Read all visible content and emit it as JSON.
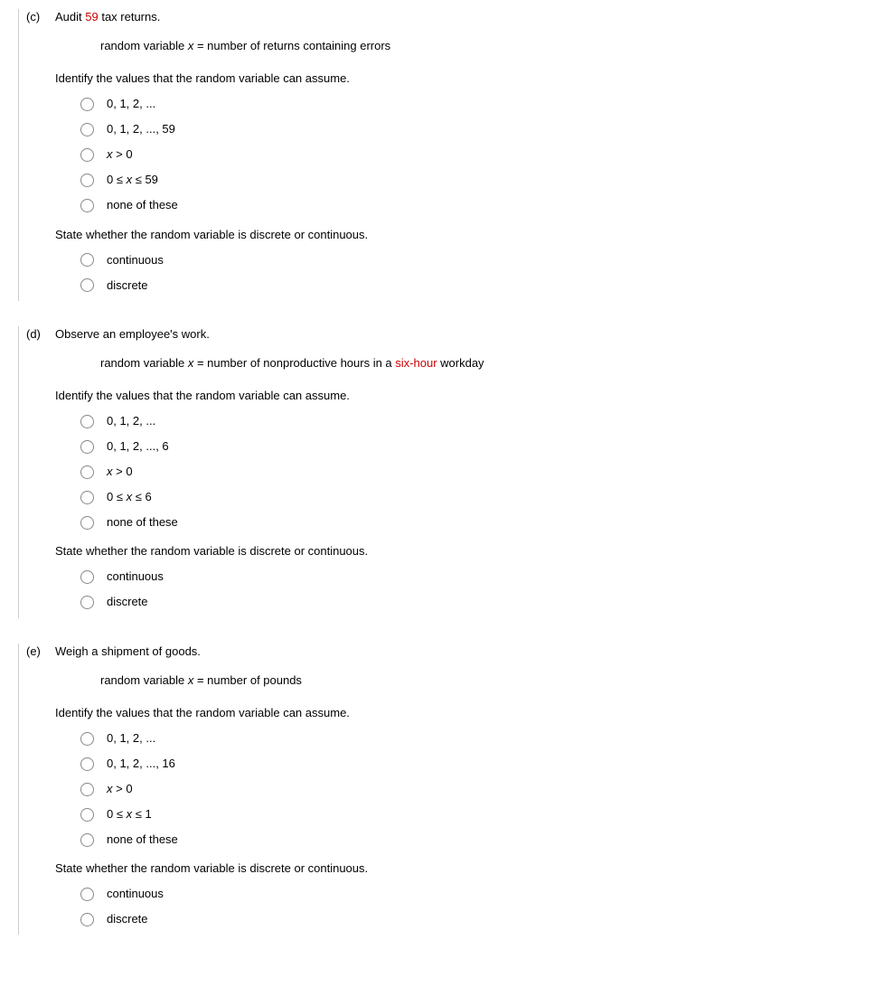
{
  "questions": [
    {
      "label": "(c)",
      "scenario_pre": "Audit ",
      "scenario_hl": "59",
      "scenario_post": " tax returns.",
      "rv_pre": "random variable ",
      "rv_var": "x",
      "rv_post": " = number of returns containing errors",
      "identify_prompt": "Identify the values that the random variable can assume.",
      "value_options": [
        "0, 1, 2, ...",
        "0, 1, 2, ..., 59",
        "<i>x</i> > 0",
        "0 ≤ <i>x</i> ≤ 59",
        "none of these"
      ],
      "state_prompt": "State whether the random variable is discrete or continuous.",
      "type_options": [
        "continuous",
        "discrete"
      ]
    },
    {
      "label": "(d)",
      "scenario_pre": "Observe an employee's work.",
      "scenario_hl": "",
      "scenario_post": "",
      "rv_pre": "random variable ",
      "rv_var": "x",
      "rv_post_pre": " = number of nonproductive hours in a ",
      "rv_post_hl": "six-hour",
      "rv_post_post": " workday",
      "identify_prompt": "Identify the values that the random variable can assume.",
      "value_options": [
        "0, 1, 2, ...",
        "0, 1, 2, ..., 6",
        "<i>x</i> > 0",
        "0 ≤ <i>x</i> ≤ 6",
        "none of these"
      ],
      "state_prompt": "State whether the random variable is discrete or continuous.",
      "type_options": [
        "continuous",
        "discrete"
      ]
    },
    {
      "label": "(e)",
      "scenario_pre": "Weigh a shipment of goods.",
      "scenario_hl": "",
      "scenario_post": "",
      "rv_pre": "random variable ",
      "rv_var": "x",
      "rv_post": " = number of pounds",
      "identify_prompt": "Identify the values that the random variable can assume.",
      "value_options": [
        "0, 1, 2, ...",
        "0, 1, 2, ..., 16",
        "<i>x</i> > 0",
        "0 ≤ <i>x</i> ≤ 1",
        "none of these"
      ],
      "state_prompt": "State whether the random variable is discrete or continuous.",
      "type_options": [
        "continuous",
        "discrete"
      ]
    }
  ]
}
